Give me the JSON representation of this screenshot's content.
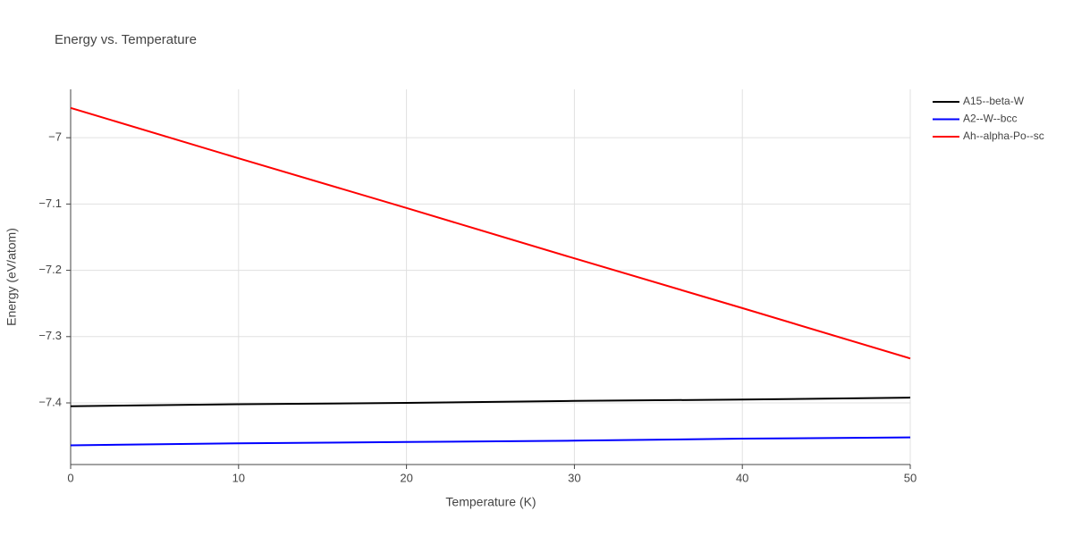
{
  "chart_data": {
    "type": "line",
    "title": "Energy vs. Temperature",
    "x_label": "Temperature (K)",
    "y_label": "Energy (eV/atom)",
    "x": [
      0,
      10,
      20,
      30,
      40,
      50
    ],
    "series": [
      {
        "name": "A15--beta-W",
        "color": "#000000",
        "values": [
          -7.405,
          -7.402,
          -7.4,
          -7.397,
          -7.395,
          -7.392
        ]
      },
      {
        "name": "A2--W--bcc",
        "color": "#0000ff",
        "values": [
          -7.464,
          -7.461,
          -7.459,
          -7.457,
          -7.454,
          -7.452
        ]
      },
      {
        "name": "Ah--alpha-Po--sc",
        "color": "#ff0000",
        "values": [
          -6.955,
          -7.031,
          -7.106,
          -7.182,
          -7.257,
          -7.333
        ]
      }
    ],
    "xlim": [
      0,
      50
    ],
    "xticks": [
      0,
      10,
      20,
      30,
      40,
      50
    ],
    "ylim": [
      -7.493,
      -6.927
    ],
    "yticks": [
      {
        "value": -7,
        "label": "−7"
      },
      {
        "value": -7.1,
        "label": "−7.1"
      },
      {
        "value": -7.2,
        "label": "−7.2"
      },
      {
        "value": -7.3,
        "label": "−7.3"
      },
      {
        "value": -7.4,
        "label": "−7.4"
      }
    ],
    "grid": true,
    "legend": "top-right"
  }
}
